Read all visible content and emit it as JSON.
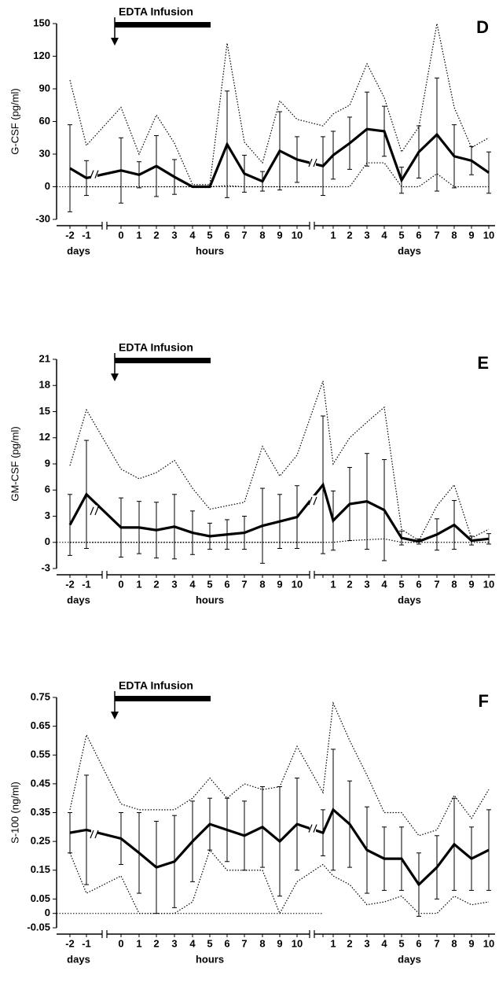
{
  "chart_data": [
    {
      "type": "line",
      "panel": "D",
      "annotation": "EDTA Infusion",
      "ylabel": "G-CSF (pg/ml)",
      "categories": [
        "-2",
        "-1",
        "0",
        "1",
        "2",
        "3",
        "4",
        "5",
        "6",
        "7",
        "8",
        "9",
        "10",
        null,
        "1",
        "2",
        "3",
        "4",
        "5",
        "6",
        "7",
        "8",
        "9",
        "10"
      ],
      "x_groups": [
        "days",
        "hours",
        "days"
      ],
      "ylim": [
        -30,
        150
      ],
      "yticks": [
        -30,
        0,
        30,
        60,
        90,
        120,
        150
      ],
      "series": [
        {
          "style": "solid",
          "color": "#000000",
          "values": [
            17,
            8,
            15,
            11,
            19,
            9,
            0,
            0,
            39,
            12,
            5,
            33,
            25,
            19,
            29,
            40,
            53,
            51,
            6,
            32,
            48,
            28,
            24,
            13
          ],
          "error": [
            40,
            16,
            30,
            12,
            28,
            16,
            0,
            0,
            49,
            17,
            9,
            36,
            21,
            27,
            22,
            24,
            34,
            23,
            12,
            24,
            52,
            29,
            13,
            19
          ]
        },
        {
          "style": "dotted",
          "color": "#000000",
          "values": [
            98,
            38,
            73,
            30,
            66,
            40,
            2,
            2,
            132,
            41,
            22,
            79,
            62,
            56,
            67,
            75,
            113,
            82,
            32,
            55,
            150,
            73,
            36,
            45
          ]
        },
        {
          "style": "dotted",
          "color": "#000000",
          "values": [
            0,
            0,
            0,
            0,
            0,
            0,
            0,
            0,
            1,
            0,
            0,
            0,
            0,
            0,
            0,
            0,
            22,
            22,
            0,
            0,
            12,
            0,
            0,
            0
          ]
        }
      ]
    },
    {
      "type": "line",
      "panel": "E",
      "annotation": "EDTA Infusion",
      "ylabel": "GM-CSF (pg/ml)",
      "categories": [
        "-2",
        "-1",
        "0",
        "1",
        "2",
        "3",
        "4",
        "5",
        "6",
        "7",
        "8",
        "9",
        "10",
        null,
        "1",
        "2",
        "3",
        "4",
        "5",
        "6",
        "7",
        "8",
        "9",
        "10"
      ],
      "x_groups": [
        "days",
        "hours",
        "days"
      ],
      "ylim": [
        -3,
        21
      ],
      "yticks": [
        -3,
        0,
        3,
        6,
        9,
        12,
        15,
        18,
        21
      ],
      "series": [
        {
          "style": "solid",
          "color": "#000000",
          "values": [
            2,
            5.5,
            1.7,
            1.7,
            1.4,
            1.8,
            1.1,
            0.7,
            0.9,
            1.1,
            1.9,
            2.4,
            2.9,
            6.6,
            2.5,
            4.4,
            4.7,
            3.7,
            0.5,
            0.1,
            0.9,
            2,
            0.2,
            0.4
          ],
          "error": [
            3.5,
            6.2,
            3.4,
            3,
            3.2,
            3.7,
            2.5,
            1.5,
            1.7,
            1.9,
            4.3,
            3.1,
            3.6,
            7.9,
            3.4,
            4.2,
            5.5,
            5.8,
            0.8,
            0.3,
            1.8,
            2.8,
            0.5,
            0.6
          ]
        },
        {
          "style": "dotted",
          "color": "#000000",
          "values": [
            8.8,
            15.2,
            8.4,
            7.3,
            8,
            9.4,
            6.2,
            3.8,
            4.2,
            4.6,
            11,
            7.6,
            10,
            18.5,
            9,
            12,
            13.8,
            15.5,
            1.5,
            0.2,
            4.2,
            6.6,
            0.5,
            1.5
          ]
        },
        {
          "style": "dotted",
          "color": "#000000",
          "values": [
            0,
            0,
            0,
            0,
            0,
            0,
            0,
            0,
            0,
            0,
            0,
            0,
            0,
            0,
            0,
            0.2,
            0.3,
            0.4,
            0,
            0,
            0,
            0,
            0,
            0
          ]
        }
      ]
    },
    {
      "type": "line",
      "panel": "F",
      "annotation": "EDTA Infusion",
      "ylabel": "S-100 (ng/ml)",
      "categories": [
        "-2",
        "-1",
        "0",
        "1",
        "2",
        "3",
        "4",
        "5",
        "6",
        "7",
        "8",
        "9",
        "10",
        null,
        "1",
        "2",
        "3",
        "4",
        "5",
        "6",
        "7",
        "8",
        "9",
        "10"
      ],
      "x_groups": [
        "days",
        "hours",
        "days"
      ],
      "ylim": [
        -0.05,
        0.75
      ],
      "yticks": [
        -0.05,
        0,
        0.05,
        0.15,
        0.25,
        0.35,
        0.45,
        0.55,
        0.65,
        0.75
      ],
      "series": [
        {
          "style": "solid",
          "color": "#000000",
          "values": [
            0.28,
            0.29,
            0.26,
            0.21,
            0.16,
            0.18,
            0.25,
            0.31,
            0.29,
            0.27,
            0.3,
            0.25,
            0.31,
            0.28,
            0.36,
            0.31,
            0.22,
            0.19,
            0.19,
            0.1,
            0.16,
            0.24,
            0.19,
            0.22
          ],
          "error": [
            0.07,
            0.19,
            0.09,
            0.14,
            0.16,
            0.16,
            0.14,
            0.09,
            0.11,
            0.12,
            0.14,
            0.19,
            0.16,
            0.08,
            0.21,
            0.15,
            0.15,
            0.11,
            0.11,
            0.11,
            0.11,
            0.16,
            0.11,
            0.14
          ]
        },
        {
          "style": "dotted",
          "color": "#000000",
          "values": [
            0.36,
            0.62,
            0.38,
            0.36,
            0.36,
            0.36,
            0.4,
            0.47,
            0.4,
            0.45,
            0.43,
            0.44,
            0.58,
            0.42,
            0.73,
            0.6,
            0.48,
            0.35,
            0.35,
            0.27,
            0.29,
            0.41,
            0.33,
            0.43
          ]
        },
        {
          "style": "dotted",
          "color": "#000000",
          "values": [
            0.21,
            0.07,
            0.13,
            0,
            0,
            0,
            0.04,
            0.22,
            0.15,
            0.15,
            0.15,
            0,
            0.11,
            0.17,
            0.13,
            0.1,
            0.03,
            0.04,
            0.06,
            0,
            0,
            0.06,
            0.03,
            0.04
          ]
        }
      ]
    }
  ]
}
